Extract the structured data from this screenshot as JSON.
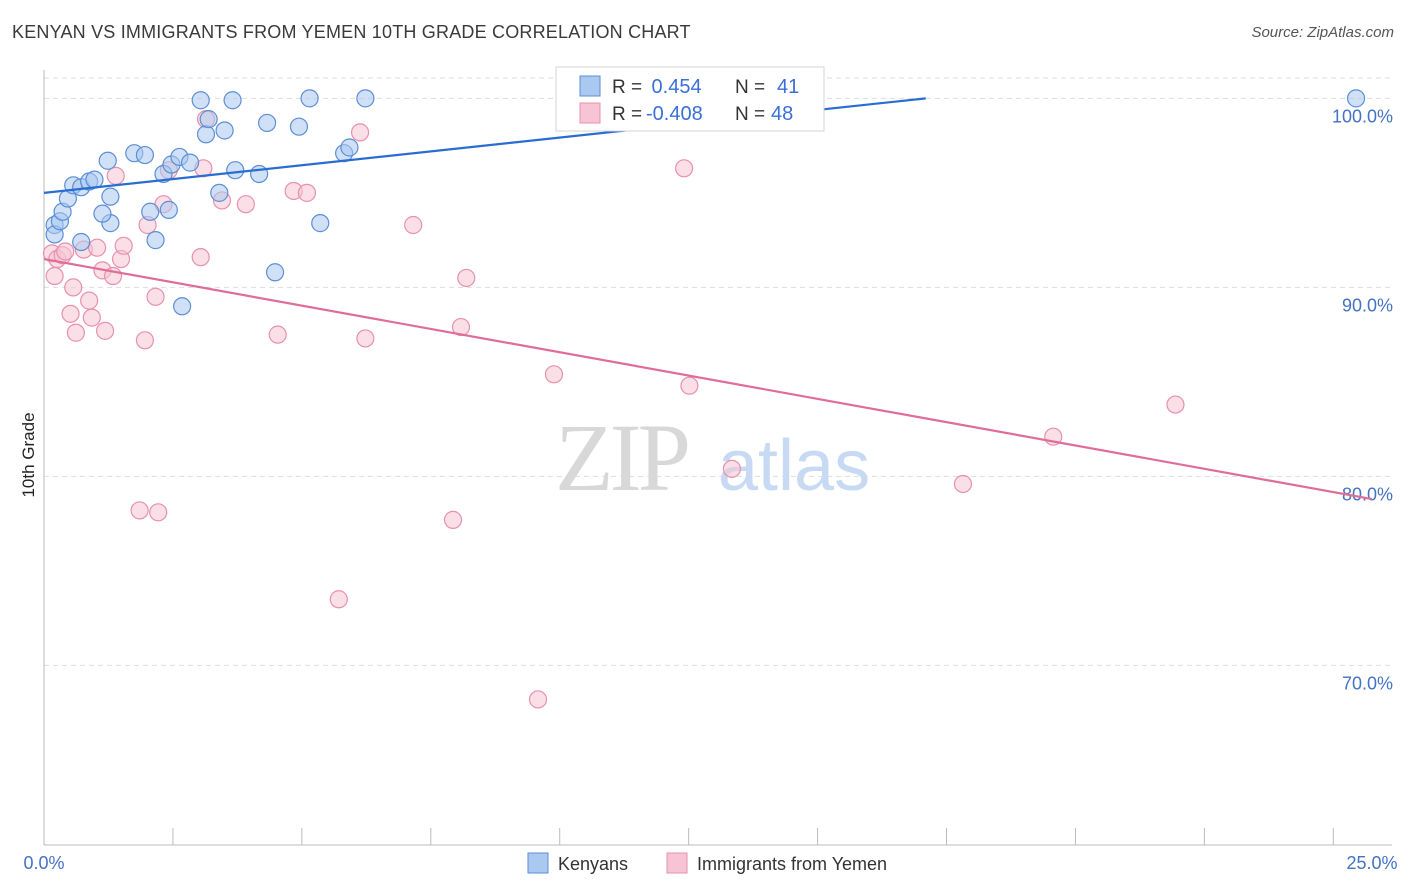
{
  "title": "KENYAN VS IMMIGRANTS FROM YEMEN 10TH GRADE CORRELATION CHART",
  "source": "Source: ZipAtlas.com",
  "watermark": {
    "zip": "ZIP",
    "atlas": "atlas"
  },
  "colors": {
    "kenyans_fill": "#aac8f0",
    "kenyans_stroke": "#5b8fd6",
    "kenyans_line": "#2a6dd0",
    "yemen_fill": "#f6c4d4",
    "yemen_stroke": "#e890ae",
    "yemen_line": "#e06c98",
    "grid": "#dddddd",
    "axis_text": "#4472c4"
  },
  "legend": {
    "rows": [
      {
        "r_label": "R =",
        "r_value": " 0.454",
        "n_label": "N =",
        "n_value": "41"
      },
      {
        "r_label": "R =",
        "r_value": "-0.408",
        "n_label": "N =",
        "n_value": "48"
      }
    ]
  },
  "bottom_legend": {
    "kenyans": "Kenyans",
    "yemen": "Immigrants from Yemen"
  },
  "chart_data": {
    "type": "scatter",
    "title": "KENYAN VS IMMIGRANTS FROM YEMEN 10TH GRADE CORRELATION CHART",
    "xlabel": "",
    "ylabel": "10th Grade",
    "xlim": [
      0,
      25
    ],
    "ylim": [
      60.5,
      101.5
    ],
    "x_tick_labels": [
      "0.0%",
      "25.0%"
    ],
    "y_ticks": [
      100,
      90,
      80,
      70
    ],
    "y_tick_labels": [
      "100.0%",
      "90.0%",
      "80.0%",
      "70.0%"
    ],
    "grid": true,
    "series": [
      {
        "name": "Kenyans",
        "R": 0.454,
        "N": 41,
        "trend": {
          "x": [
            0,
            16.6
          ],
          "y": [
            95.0,
            100.0
          ]
        },
        "points": [
          [
            0.2,
            93.3
          ],
          [
            0.2,
            92.8
          ],
          [
            0.3,
            93.5
          ],
          [
            0.35,
            94.0
          ],
          [
            0.45,
            94.7
          ],
          [
            0.55,
            95.4
          ],
          [
            0.7,
            95.3
          ],
          [
            0.85,
            95.6
          ],
          [
            0.95,
            95.7
          ],
          [
            1.2,
            96.7
          ],
          [
            1.25,
            94.8
          ],
          [
            1.7,
            97.1
          ],
          [
            1.9,
            97.0
          ],
          [
            2.0,
            94.0
          ],
          [
            2.1,
            92.5
          ],
          [
            2.25,
            96.0
          ],
          [
            2.35,
            94.1
          ],
          [
            2.4,
            96.5
          ],
          [
            2.55,
            96.9
          ],
          [
            2.75,
            96.6
          ],
          [
            2.95,
            99.9
          ],
          [
            3.05,
            98.1
          ],
          [
            3.1,
            98.9
          ],
          [
            3.3,
            95.0
          ],
          [
            3.55,
            99.9
          ],
          [
            3.6,
            96.2
          ],
          [
            3.4,
            98.3
          ],
          [
            4.05,
            96.0
          ],
          [
            4.2,
            98.7
          ],
          [
            4.35,
            90.8
          ],
          [
            4.8,
            98.5
          ],
          [
            5.0,
            100.0
          ],
          [
            5.2,
            93.4
          ],
          [
            5.65,
            97.1
          ],
          [
            5.75,
            97.4
          ],
          [
            6.05,
            100.0
          ],
          [
            1.25,
            93.4
          ],
          [
            1.1,
            93.9
          ],
          [
            0.7,
            92.4
          ],
          [
            2.6,
            89.0
          ],
          [
            24.7,
            100.0
          ]
        ]
      },
      {
        "name": "Immigrants from Yemen",
        "R": -0.408,
        "N": 48,
        "trend": {
          "x": [
            0,
            25
          ],
          "y": [
            91.5,
            78.8
          ]
        },
        "points": [
          [
            0.15,
            91.8
          ],
          [
            0.2,
            90.6
          ],
          [
            0.25,
            91.5
          ],
          [
            0.35,
            91.7
          ],
          [
            0.5,
            88.6
          ],
          [
            0.55,
            90.0
          ],
          [
            0.6,
            87.6
          ],
          [
            0.75,
            92.0
          ],
          [
            0.85,
            89.3
          ],
          [
            0.9,
            88.4
          ],
          [
            1.0,
            92.1
          ],
          [
            1.1,
            90.9
          ],
          [
            1.15,
            87.7
          ],
          [
            1.3,
            90.6
          ],
          [
            1.35,
            95.9
          ],
          [
            1.45,
            91.5
          ],
          [
            1.5,
            92.2
          ],
          [
            1.8,
            78.2
          ],
          [
            1.9,
            87.2
          ],
          [
            1.95,
            93.3
          ],
          [
            2.1,
            89.5
          ],
          [
            2.15,
            78.1
          ],
          [
            2.25,
            94.4
          ],
          [
            2.35,
            96.2
          ],
          [
            2.95,
            91.6
          ],
          [
            3.0,
            96.3
          ],
          [
            3.05,
            98.9
          ],
          [
            3.35,
            94.6
          ],
          [
            3.8,
            94.4
          ],
          [
            4.4,
            87.5
          ],
          [
            4.7,
            95.1
          ],
          [
            4.95,
            95.0
          ],
          [
            5.55,
            73.5
          ],
          [
            5.95,
            98.2
          ],
          [
            6.05,
            87.3
          ],
          [
            6.95,
            93.3
          ],
          [
            7.7,
            77.7
          ],
          [
            7.85,
            87.9
          ],
          [
            7.95,
            90.5
          ],
          [
            9.3,
            68.2
          ],
          [
            9.6,
            85.4
          ],
          [
            12.05,
            96.3
          ],
          [
            12.15,
            84.8
          ],
          [
            12.95,
            80.4
          ],
          [
            17.3,
            79.6
          ],
          [
            19.0,
            82.1
          ],
          [
            21.3,
            83.8
          ],
          [
            0.4,
            91.9
          ]
        ]
      }
    ]
  }
}
